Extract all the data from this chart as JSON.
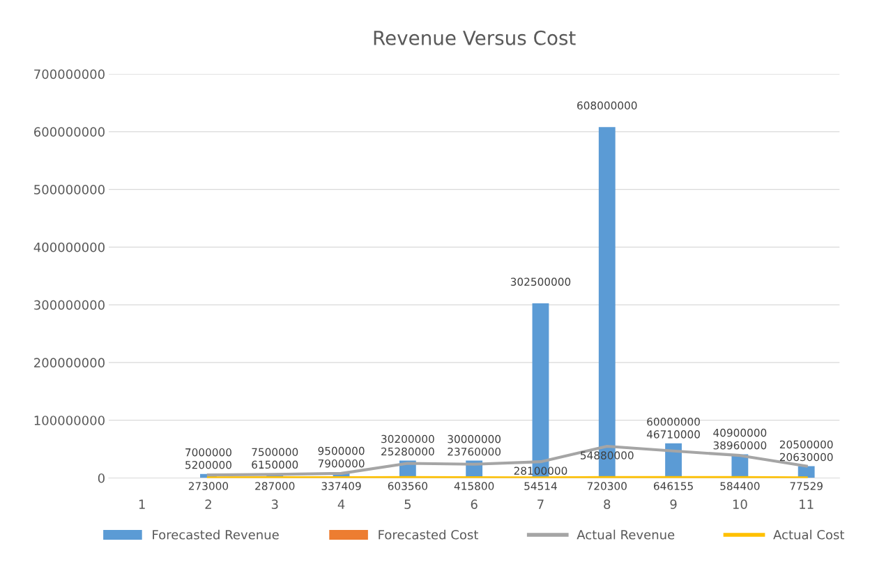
{
  "chart_data": {
    "type": "bar",
    "title": "Revenue Versus Cost",
    "categories": [
      "1",
      "2",
      "3",
      "4",
      "5",
      "6",
      "7",
      "8",
      "9",
      "10",
      "11"
    ],
    "series": [
      {
        "name": "Forecasted Revenue",
        "color": "#5b9bd5",
        "values": [
          null,
          7000000,
          7500000,
          9500000,
          30200000,
          30000000,
          302500000,
          608000000,
          60000000,
          40900000,
          20500000
        ]
      },
      {
        "name": "Forecasted Cost",
        "color": "#ed7d31",
        "values": [
          null,
          null,
          null,
          null,
          null,
          null,
          null,
          null,
          null,
          null,
          null
        ]
      },
      {
        "name": "Actual Revenue",
        "type": "line",
        "color": "#a5a5a5",
        "values": [
          null,
          5200000,
          6150000,
          7900000,
          25280000,
          23760000,
          28100000,
          54880000,
          46710000,
          38960000,
          20630000
        ]
      },
      {
        "name": "Actual Cost",
        "type": "line",
        "color": "#ffc000",
        "values": [
          null,
          273000,
          287000,
          337409,
          603560,
          415800,
          54514,
          720300,
          646155,
          584400,
          77529
        ]
      }
    ],
    "ylim": [
      0,
      700000000
    ],
    "yticks": [
      0,
      100000000,
      200000000,
      300000000,
      400000000,
      500000000,
      600000000,
      700000000
    ],
    "grid": "y",
    "legend": "bottom",
    "data_labels": true,
    "marker": "none",
    "line_style": "solid"
  }
}
